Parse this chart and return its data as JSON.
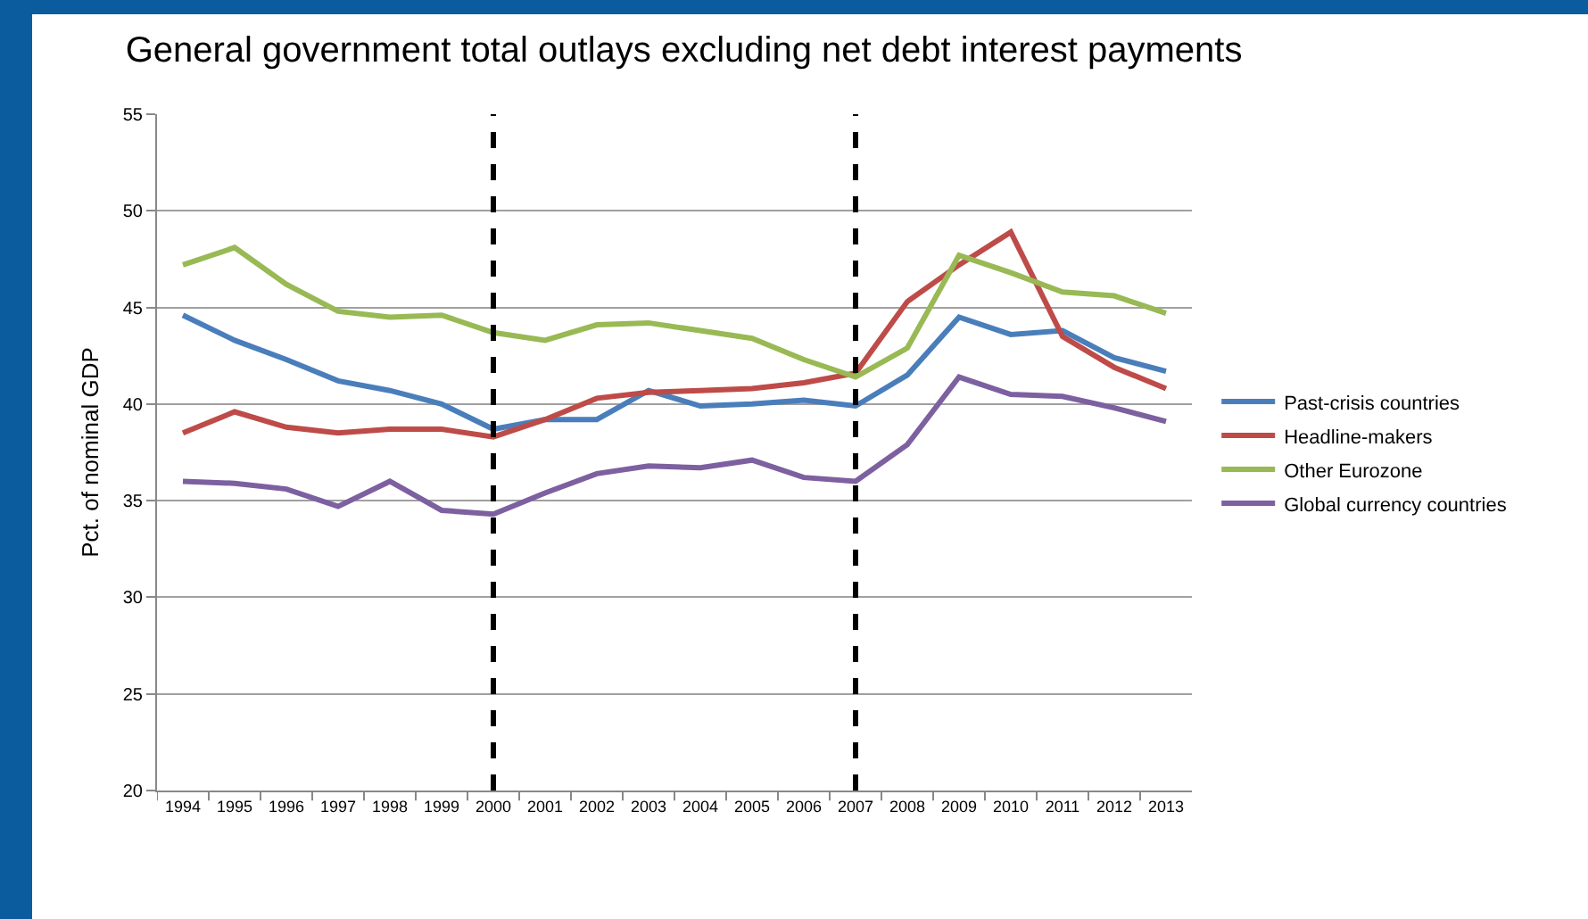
{
  "chart_data": {
    "type": "line",
    "title": "General government total outlays excluding net debt interest payments",
    "ylabel": "Pct. of nominal GDP",
    "categories": [
      "1994",
      "1995",
      "1996",
      "1997",
      "1998",
      "1999",
      "2000",
      "2001",
      "2002",
      "2003",
      "2004",
      "2005",
      "2006",
      "2007",
      "2008",
      "2009",
      "2010",
      "2011",
      "2012",
      "2013"
    ],
    "series": [
      {
        "name": "Past-crisis countries",
        "color": "#4a7ebb",
        "values": [
          44.6,
          43.3,
          42.3,
          41.2,
          40.7,
          40.0,
          38.7,
          39.2,
          39.2,
          40.7,
          39.9,
          40.0,
          40.2,
          39.9,
          41.5,
          44.5,
          43.6,
          43.8,
          42.4,
          41.7
        ]
      },
      {
        "name": "Headline-makers",
        "color": "#be4b48",
        "values": [
          38.5,
          39.6,
          38.8,
          38.5,
          38.7,
          38.7,
          38.3,
          39.2,
          40.3,
          40.6,
          40.7,
          40.8,
          41.1,
          41.6,
          45.3,
          47.2,
          48.9,
          43.5,
          41.9,
          40.8
        ]
      },
      {
        "name": "Other Eurozone",
        "color": "#98b954",
        "values": [
          47.2,
          48.1,
          46.2,
          44.8,
          44.5,
          44.6,
          43.7,
          43.3,
          44.1,
          44.2,
          43.8,
          43.4,
          42.3,
          41.4,
          42.9,
          47.7,
          46.8,
          45.8,
          45.6,
          44.7
        ]
      },
      {
        "name": "Global currency countries",
        "color": "#7d60a0",
        "values": [
          36.0,
          35.9,
          35.6,
          34.7,
          36.0,
          34.5,
          34.3,
          35.4,
          36.4,
          36.8,
          36.7,
          37.1,
          36.2,
          36.0,
          37.9,
          41.4,
          40.5,
          40.4,
          39.8,
          39.1
        ]
      }
    ],
    "ylim": [
      20,
      55
    ],
    "yticks": [
      20,
      25,
      30,
      35,
      40,
      45,
      50,
      55
    ],
    "grid": "y",
    "legend": "right",
    "marker": "none",
    "line_style": "solid",
    "ref_lines": [
      {
        "axis": "x",
        "value": "2000",
        "color": "#000000",
        "line_style": "dashed"
      },
      {
        "axis": "x",
        "value": "2007",
        "color": "#000000",
        "line_style": "dashed"
      }
    ]
  }
}
